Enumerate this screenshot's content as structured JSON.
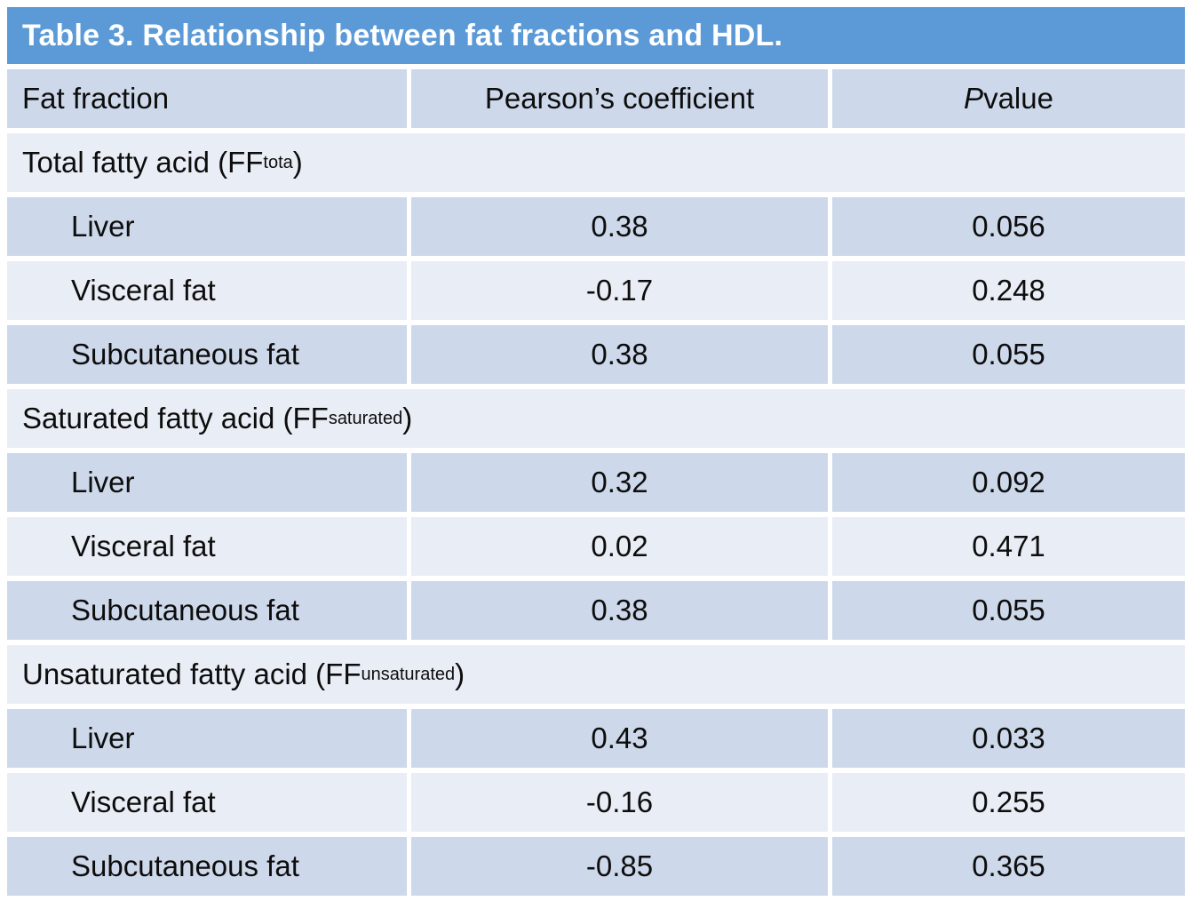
{
  "title": "Table 3. Relationship between fat fractions and HDL.",
  "columns": {
    "fat_fraction": "Fat fraction",
    "pearson": "Pearson’s coefficient",
    "p_italic": "P",
    "p_rest": " value"
  },
  "sections": [
    {
      "header_prefix": "Total fatty acid (FF",
      "header_sub": "tota",
      "header_suffix": ")",
      "rows": [
        {
          "label": "Liver",
          "pearson": "0.38",
          "p": "0.056"
        },
        {
          "label": "Visceral fat",
          "pearson": "-0.17",
          "p": "0.248"
        },
        {
          "label": "Subcutaneous fat",
          "pearson": "0.38",
          "p": "0.055"
        }
      ]
    },
    {
      "header_prefix": "Saturated fatty acid (FF",
      "header_sub": "saturated",
      "header_suffix": ")",
      "rows": [
        {
          "label": "Liver",
          "pearson": "0.32",
          "p": "0.092"
        },
        {
          "label": "Visceral fat",
          "pearson": "0.02",
          "p": "0.471"
        },
        {
          "label": "Subcutaneous fat",
          "pearson": "0.38",
          "p": "0.055"
        }
      ]
    },
    {
      "header_prefix": "Unsaturated fatty acid (FF",
      "header_sub": "unsaturated",
      "header_suffix": ")",
      "rows": [
        {
          "label": "Liver",
          "pearson": "0.43",
          "p": "0.033"
        },
        {
          "label": "Visceral fat",
          "pearson": "-0.16",
          "p": "0.255"
        },
        {
          "label": "Subcutaneous fat",
          "pearson": "-0.85",
          "p": "0.365"
        }
      ]
    }
  ],
  "colors": {
    "title_bg": "#5b9ad7",
    "title_text": "#ffffff",
    "row_dark": "#cdd8ea",
    "row_light": "#e9edf5",
    "text": "#0d0d0d",
    "page_bg": "#ffffff"
  }
}
